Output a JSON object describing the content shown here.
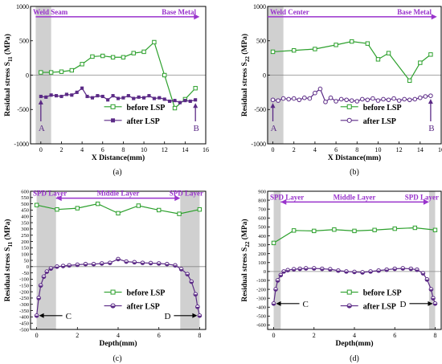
{
  "chart_data": [
    {
      "panel": "(a)",
      "type": "line",
      "xlabel": "X Distance(mm)",
      "ylabel": "Residual stress S11 (MPa)",
      "ylabel_main": "Residual stress S",
      "ylabel_sub": "11",
      "ylabel_unit": " (MPa)",
      "xlim": [
        -1,
        16
      ],
      "ylim": [
        -1000,
        1000
      ],
      "xticks": [
        0,
        2,
        4,
        6,
        8,
        10,
        12,
        14,
        16
      ],
      "yticks": [
        -1000,
        -500,
        0,
        500,
        1000
      ],
      "zero_line": 0,
      "shaded_regions": [
        [
          -0.5,
          1
        ]
      ],
      "region_labels": [
        "Weld Seam",
        "Base Metal"
      ],
      "arrow": {
        "from": -0.5,
        "to": 15.4,
        "y": 850
      },
      "markers": [
        {
          "label": "A",
          "x": 0,
          "y": -310
        },
        {
          "label": "B",
          "x": 15,
          "y": -360
        }
      ],
      "legend": "lower-right",
      "series": [
        {
          "name": "before LSP",
          "color": "#2ca02c",
          "marker": "square",
          "x": [
            0,
            1,
            2,
            3,
            4,
            5,
            6,
            7,
            8,
            9,
            10,
            11,
            12,
            13,
            14,
            15
          ],
          "y": [
            40,
            40,
            50,
            70,
            160,
            270,
            280,
            260,
            260,
            320,
            340,
            480,
            0,
            -480,
            -350,
            -190
          ],
          "step": true,
          "step_y": [
            30,
            30,
            40,
            60,
            140,
            250,
            290,
            270,
            270,
            270,
            350,
            480,
            10,
            -480,
            -350,
            -190
          ]
        },
        {
          "name": "after LSP",
          "color": "#5b2a86",
          "marker": "filled-square",
          "x": [
            0,
            0.5,
            1,
            1.5,
            2,
            2.5,
            3,
            3.5,
            4,
            4.5,
            5,
            5.5,
            6,
            6.5,
            7,
            7.5,
            8,
            8.5,
            9,
            9.5,
            10,
            10.5,
            11,
            11.5,
            12,
            12.5,
            13,
            13.5,
            14,
            14.5,
            15
          ],
          "y": [
            -310,
            -320,
            -290,
            -300,
            -310,
            -280,
            -290,
            -250,
            -190,
            -310,
            -330,
            -300,
            -310,
            -360,
            -300,
            -340,
            -330,
            -300,
            -340,
            -320,
            -330,
            -300,
            -340,
            -330,
            -350,
            -380,
            -370,
            -400,
            -370,
            -380,
            -360
          ]
        }
      ]
    },
    {
      "panel": "(b)",
      "type": "line",
      "xlabel": "X Distance(mm)",
      "ylabel": "Residual stress S22 (MPa)",
      "ylabel_main": "Residual stress S",
      "ylabel_sub": "22",
      "ylabel_unit": " (MPa)",
      "xlim": [
        -0.5,
        16
      ],
      "ylim": [
        -1000,
        1000
      ],
      "xticks": [
        0,
        2,
        4,
        6,
        8,
        10,
        12,
        14,
        16
      ],
      "yticks": [
        -1000,
        -500,
        0,
        500,
        1000
      ],
      "zero_line": 0,
      "shaded_regions": [
        [
          -0.5,
          1
        ]
      ],
      "region_labels": [
        "Weld Center",
        "Base Metal"
      ],
      "arrow": {
        "from": -0.5,
        "to": 15.6,
        "y": 850
      },
      "markers": [
        {
          "label": "A",
          "x": 0,
          "y": -360
        },
        {
          "label": "B",
          "x": 15,
          "y": -300
        }
      ],
      "legend": "lower-right",
      "series": [
        {
          "name": "before LSP",
          "color": "#2ca02c",
          "marker": "square",
          "x": [
            0,
            2,
            4,
            6,
            7.5,
            9,
            10,
            11,
            13,
            14,
            15
          ],
          "y": [
            340,
            360,
            380,
            440,
            490,
            460,
            230,
            320,
            -80,
            180,
            300
          ],
          "step": true
        },
        {
          "name": "after LSP",
          "color": "#5b2a86",
          "marker": "open-circle",
          "x": [
            0,
            0.5,
            1,
            1.5,
            2,
            2.5,
            3,
            3.5,
            4,
            4.5,
            5,
            5.5,
            6,
            6.5,
            7,
            7.5,
            8,
            8.5,
            9,
            9.5,
            10,
            10.5,
            11,
            11.5,
            12,
            12.5,
            13,
            13.5,
            14,
            14.5,
            15
          ],
          "y": [
            -360,
            -370,
            -340,
            -350,
            -340,
            -360,
            -330,
            -340,
            -260,
            -200,
            -390,
            -330,
            -380,
            -350,
            -360,
            -370,
            -380,
            -350,
            -360,
            -340,
            -370,
            -350,
            -360,
            -340,
            -370,
            -350,
            -360,
            -350,
            -330,
            -310,
            -300
          ]
        }
      ]
    },
    {
      "panel": "(c)",
      "type": "line",
      "xlabel": "Depth(mm)",
      "ylabel": "Residual stress S11 (MPa)",
      "ylabel_main": "Residual stress S",
      "ylabel_sub": "11",
      "ylabel_unit": " (MPa)",
      "xlim": [
        -0.3,
        8.3
      ],
      "ylim": [
        -500,
        600
      ],
      "xticks": [
        0,
        2,
        4,
        6,
        8
      ],
      "yticks": [
        -500,
        -450,
        -400,
        -350,
        -300,
        -250,
        -200,
        -150,
        -100,
        -50,
        0,
        50,
        100,
        150,
        200,
        250,
        300,
        350,
        400,
        450,
        500,
        550,
        600
      ],
      "zero_line": 0,
      "shaded_regions": [
        [
          0,
          0.95
        ],
        [
          7.05,
          8
        ]
      ],
      "region_labels": [
        "SPD Layer",
        "Middle Layer",
        "SPD Layer"
      ],
      "arrow": {
        "from": 0.95,
        "to": 7.05,
        "y": 545
      },
      "markers": [
        {
          "label": "C",
          "x": 0,
          "y": -390
        },
        {
          "label": "D",
          "x": 8,
          "y": -390
        }
      ],
      "legend": "lower-right",
      "series": [
        {
          "name": "before LSP",
          "color": "#2ca02c",
          "marker": "square",
          "x": [
            0,
            1,
            2,
            3,
            4,
            5,
            6,
            7,
            8
          ],
          "y": [
            490,
            455,
            465,
            500,
            425,
            485,
            450,
            420,
            455
          ],
          "step": true
        },
        {
          "name": "after LSP",
          "color": "#5b2a86",
          "marker": "half-circle",
          "x": [
            0,
            0.1,
            0.2,
            0.35,
            0.5,
            0.7,
            1,
            1.3,
            1.6,
            2,
            2.4,
            2.8,
            3.2,
            3.6,
            4,
            4.4,
            4.8,
            5.2,
            5.6,
            6,
            6.4,
            6.8,
            7.1,
            7.4,
            7.6,
            7.8,
            7.9,
            8
          ],
          "y": [
            -390,
            -250,
            -150,
            -80,
            -40,
            -15,
            0,
            5,
            10,
            15,
            20,
            20,
            25,
            30,
            60,
            40,
            35,
            30,
            28,
            25,
            20,
            10,
            -20,
            -60,
            -120,
            -220,
            -320,
            -390
          ]
        }
      ]
    },
    {
      "panel": "(d)",
      "type": "line",
      "xlabel": "Depth(mm)",
      "ylabel": "Residual stress S22 (MPa)",
      "ylabel_main": "Residual stress S",
      "ylabel_sub": "22",
      "ylabel_unit": " (MPa)",
      "xlim": [
        -0.3,
        8.3
      ],
      "ylim": [
        -650,
        900
      ],
      "xticks": [
        0,
        2,
        4,
        6,
        8
      ],
      "yticks": [
        -600,
        -500,
        -400,
        -300,
        -200,
        -100,
        0,
        100,
        200,
        300,
        400,
        500,
        600,
        700,
        800,
        900
      ],
      "ytick_labels": [
        "-600",
        "-500",
        "-400",
        "-300",
        "-200",
        "-100",
        "0",
        "100",
        "200",
        "300",
        "400",
        "500",
        "600",
        "700",
        "800",
        "900"
      ],
      "zero_line": 0,
      "shaded_regions": [
        [
          0,
          0.35
        ],
        [
          7.7,
          8
        ]
      ],
      "region_labels": [
        "SPD Layer",
        "Middle Layer",
        "SPD Layer"
      ],
      "arrow": {
        "from": 0.35,
        "to": 7.7,
        "y": 780
      },
      "markers": [
        {
          "label": "C",
          "x": 0,
          "y": -360
        },
        {
          "label": "D",
          "x": 8,
          "y": -360
        }
      ],
      "legend": "lower-right",
      "series": [
        {
          "name": "before LSP",
          "color": "#2ca02c",
          "marker": "square",
          "x": [
            0,
            1,
            2,
            3,
            4,
            5,
            6,
            7,
            8
          ],
          "y": [
            320,
            460,
            455,
            470,
            455,
            465,
            480,
            490,
            465
          ],
          "step": false
        },
        {
          "name": "after LSP",
          "color": "#5b2a86",
          "marker": "half-circle",
          "x": [
            0,
            0.1,
            0.2,
            0.35,
            0.5,
            0.7,
            1,
            1.3,
            1.6,
            2,
            2.4,
            2.8,
            3.2,
            3.6,
            4,
            4.4,
            4.8,
            5.2,
            5.6,
            6,
            6.4,
            6.8,
            7.1,
            7.4,
            7.6,
            7.8,
            7.9,
            8
          ],
          "y": [
            -360,
            -200,
            -100,
            -40,
            0,
            15,
            25,
            30,
            35,
            35,
            30,
            25,
            10,
            0,
            -5,
            -10,
            0,
            10,
            20,
            30,
            35,
            30,
            20,
            -20,
            -90,
            -200,
            -300,
            -360
          ]
        }
      ]
    }
  ],
  "panel_labels": [
    "(a)",
    "(b)",
    "(c)",
    "(d)"
  ],
  "colors": {
    "region_text": "#9933cc",
    "arrow": "#9933cc",
    "shade": "#c8c8c8",
    "marker_arrow": "#5b2a86",
    "green": "#2ca02c",
    "purple": "#5b2a86"
  }
}
